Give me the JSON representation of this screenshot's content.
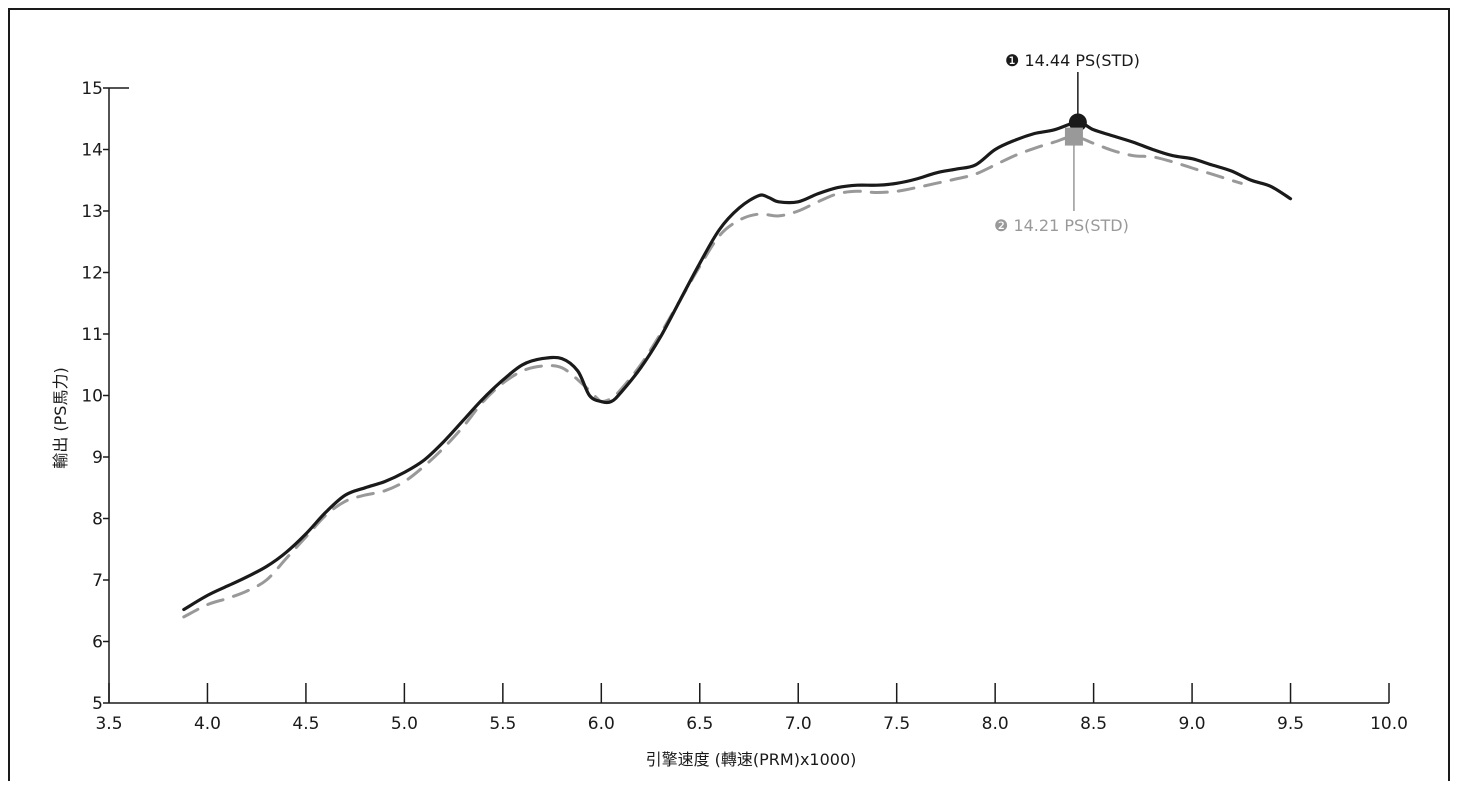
{
  "chart_data": {
    "type": "line",
    "xlabel": "引擎速度 (轉速(PRM)x1000)",
    "ylabel": "輸出 (PS馬力)",
    "xlim": [
      3.5,
      10.0
    ],
    "ylim": [
      5,
      15
    ],
    "x_ticks": [
      3.5,
      4.0,
      4.5,
      5.0,
      5.5,
      6.0,
      6.5,
      7.0,
      7.5,
      8.0,
      8.5,
      9.0,
      9.5,
      10.0
    ],
    "x_tick_labels": [
      "3.5",
      "4.0",
      "4.5",
      "5.0",
      "5.5",
      "6.0",
      "6.5",
      "7.0",
      "7.5",
      "8.0",
      "8.5",
      "9.0",
      "9.5",
      "10.0"
    ],
    "y_ticks": [
      5,
      6,
      7,
      8,
      9,
      10,
      11,
      12,
      13,
      14,
      15
    ],
    "y_tick_labels": [
      "5",
      "6",
      "7",
      "8",
      "9",
      "10",
      "11",
      "12",
      "13",
      "14",
      "15"
    ],
    "grid": false,
    "series": [
      {
        "color": "#1a1a1a",
        "style": "solid",
        "x": [
          3.88,
          4.0,
          4.1,
          4.2,
          4.3,
          4.4,
          4.5,
          4.6,
          4.7,
          4.8,
          4.9,
          5.0,
          5.1,
          5.2,
          5.3,
          5.4,
          5.5,
          5.6,
          5.7,
          5.8,
          5.88,
          5.94,
          6.0,
          6.05,
          6.1,
          6.2,
          6.3,
          6.4,
          6.5,
          6.6,
          6.7,
          6.8,
          6.85,
          6.9,
          7.0,
          7.1,
          7.2,
          7.3,
          7.4,
          7.5,
          7.6,
          7.7,
          7.8,
          7.9,
          8.0,
          8.1,
          8.2,
          8.3,
          8.42,
          8.5,
          8.6,
          8.7,
          8.8,
          8.9,
          9.0,
          9.1,
          9.2,
          9.3,
          9.4,
          9.5
        ],
        "y": [
          6.52,
          6.75,
          6.9,
          7.05,
          7.22,
          7.45,
          7.75,
          8.1,
          8.38,
          8.5,
          8.6,
          8.75,
          8.95,
          9.25,
          9.6,
          9.95,
          10.25,
          10.5,
          10.6,
          10.6,
          10.4,
          10.0,
          9.9,
          9.9,
          10.05,
          10.45,
          10.95,
          11.55,
          12.15,
          12.7,
          13.05,
          13.25,
          13.22,
          13.15,
          13.15,
          13.28,
          13.38,
          13.42,
          13.42,
          13.45,
          13.52,
          13.62,
          13.68,
          13.75,
          14.0,
          14.15,
          14.26,
          14.32,
          14.44,
          14.32,
          14.22,
          14.12,
          14.0,
          13.9,
          13.85,
          13.75,
          13.65,
          13.5,
          13.4,
          13.2
        ]
      },
      {
        "color": "#999999",
        "style": "dashed",
        "x": [
          3.88,
          4.0,
          4.1,
          4.2,
          4.3,
          4.4,
          4.5,
          4.6,
          4.7,
          4.8,
          4.9,
          5.0,
          5.1,
          5.2,
          5.3,
          5.4,
          5.5,
          5.6,
          5.7,
          5.8,
          5.9,
          5.98,
          6.0,
          6.05,
          6.1,
          6.2,
          6.3,
          6.4,
          6.5,
          6.6,
          6.7,
          6.8,
          6.9,
          7.0,
          7.1,
          7.2,
          7.3,
          7.4,
          7.5,
          7.6,
          7.7,
          7.8,
          7.9,
          8.0,
          8.1,
          8.2,
          8.3,
          8.4,
          8.5,
          8.6,
          8.7,
          8.8,
          8.9,
          9.0,
          9.1,
          9.2,
          9.25
        ],
        "y": [
          6.4,
          6.6,
          6.7,
          6.82,
          7.0,
          7.35,
          7.7,
          8.05,
          8.28,
          8.38,
          8.45,
          8.6,
          8.85,
          9.15,
          9.5,
          9.9,
          10.2,
          10.4,
          10.48,
          10.45,
          10.2,
          9.95,
          9.9,
          9.95,
          10.1,
          10.5,
          11.0,
          11.55,
          12.1,
          12.6,
          12.85,
          12.95,
          12.92,
          13.0,
          13.15,
          13.28,
          13.32,
          13.3,
          13.32,
          13.38,
          13.45,
          13.52,
          13.6,
          13.75,
          13.9,
          14.02,
          14.12,
          14.21,
          14.1,
          13.98,
          13.9,
          13.88,
          13.8,
          13.7,
          13.6,
          13.5,
          13.45
        ]
      }
    ],
    "annotations": [
      {
        "marker_label": "❶",
        "text": "14.44 PS(STD)",
        "x": 8.42,
        "y": 14.44,
        "marker": "circle",
        "color": "#1a1a1a"
      },
      {
        "marker_label": "❷",
        "text": "14.21 PS(STD)",
        "x": 8.4,
        "y": 14.21,
        "marker": "square",
        "color": "#999999"
      }
    ]
  }
}
